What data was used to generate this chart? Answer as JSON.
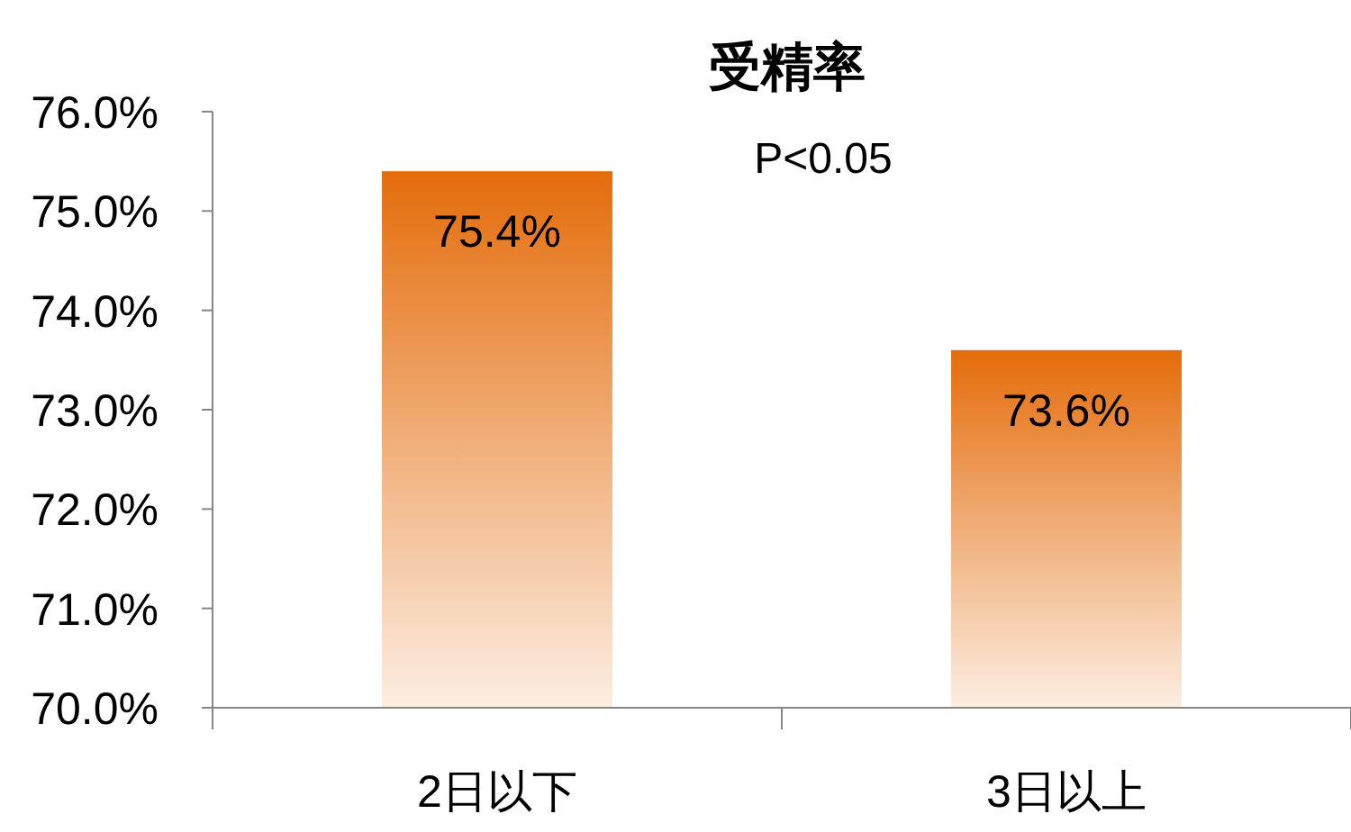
{
  "chart_data": {
    "type": "bar",
    "title": "受精率",
    "categories": [
      "2日以下",
      "3日以上"
    ],
    "values": [
      75.4,
      73.6
    ],
    "value_labels": [
      "75.4%",
      "73.6%"
    ],
    "color": "#e46c0a",
    "ylim": [
      70,
      76
    ],
    "yticks": [
      {
        "value": 70,
        "label": "70.0%"
      },
      {
        "value": 71,
        "label": "71.0%"
      },
      {
        "value": 72,
        "label": "72.0%"
      },
      {
        "value": 73,
        "label": "73.0%"
      },
      {
        "value": 74,
        "label": "74.0%"
      },
      {
        "value": 75,
        "label": "75.0%"
      },
      {
        "value": 76,
        "label": "76.0%"
      }
    ],
    "annotations": [
      "P<0.05"
    ],
    "grid": false
  }
}
